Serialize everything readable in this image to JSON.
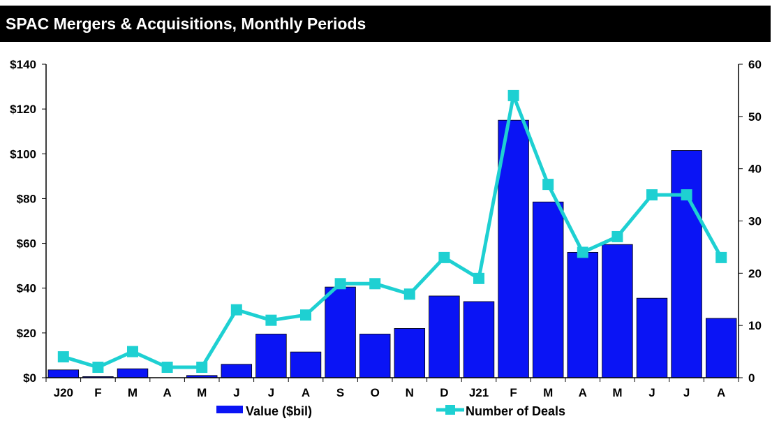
{
  "title": "SPAC Mergers & Acquisitions, Monthly Periods",
  "chart_data": {
    "type": "bar+line",
    "categories": [
      "J20",
      "F",
      "M",
      "A",
      "M",
      "J",
      "J",
      "A",
      "S",
      "O",
      "N",
      "D",
      "J21",
      "F",
      "M",
      "A",
      "M",
      "J",
      "J",
      "A"
    ],
    "series": [
      {
        "name": "Value ($bil)",
        "type": "bar",
        "axis": "left",
        "color": "#0a14f5",
        "values": [
          3.5,
          0.5,
          4,
          0,
          1,
          6,
          19.5,
          11.5,
          40.5,
          19.5,
          22,
          36.5,
          34,
          115,
          78.5,
          56,
          59.5,
          35.5,
          101.5,
          26.5
        ]
      },
      {
        "name": "Number of Deals",
        "type": "line",
        "axis": "right",
        "color": "#1ed0d2",
        "values": [
          4,
          2,
          5,
          2,
          2,
          13,
          11,
          12,
          18,
          18,
          16,
          23,
          19,
          54,
          37,
          24,
          27,
          35,
          35,
          23
        ]
      }
    ],
    "y_left": {
      "min": 0,
      "max": 140,
      "ticks": [
        0,
        20,
        40,
        60,
        80,
        100,
        120,
        140
      ],
      "tick_labels": [
        "$0",
        "$20",
        "$40",
        "$60",
        "$80",
        "$100",
        "$120",
        "$140"
      ]
    },
    "y_right": {
      "min": 0,
      "max": 60,
      "ticks": [
        0,
        10,
        20,
        30,
        40,
        50,
        60
      ],
      "tick_labels": [
        "0",
        "10",
        "20",
        "30",
        "40",
        "50",
        "60"
      ]
    },
    "grid": false,
    "legend": "bottom-center"
  }
}
